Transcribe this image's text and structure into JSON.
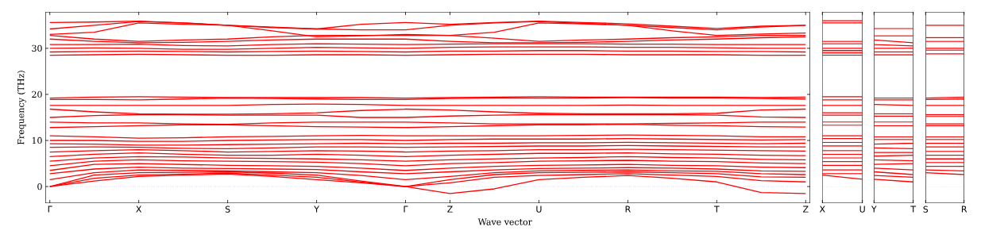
{
  "chart_data": [
    {
      "type": "line",
      "xlabel": "Wave vector",
      "ylabel": "Frequency (THz)",
      "line_style": "solid",
      "ylim": [
        -3.6,
        37.9
      ],
      "yticks": [
        0,
        10,
        20,
        30
      ],
      "categories": [
        "Γ",
        null,
        "X",
        null,
        "S",
        null,
        "Y",
        null,
        "Γ",
        "Z",
        null,
        "U",
        null,
        "R",
        null,
        "T",
        null,
        "Z"
      ],
      "ref_lines": [
        {
          "axis": "y",
          "value": 0,
          "color": "#0000ff",
          "line_style": "dotted"
        }
      ],
      "series": [
        {
          "color": "#ff0000",
          "values": [
            0,
            1.2,
            2.2,
            2.5,
            2.7,
            2.2,
            1.5,
            0.8,
            0,
            -1.5,
            -0.5,
            1.5,
            2.0,
            2.4,
            1.8,
            1.0,
            -1.3,
            -1.5
          ]
        },
        {
          "color": "#ff0000",
          "values": [
            0,
            1.8,
            2.5,
            2.7,
            2.9,
            2.5,
            2.0,
            1.0,
            0,
            0.8,
            2.0,
            2.4,
            2.6,
            2.8,
            2.5,
            2.2,
            1.3,
            1.0
          ]
        },
        {
          "color": "#ff0000",
          "values": [
            0,
            2.5,
            3.0,
            3.1,
            3.2,
            2.9,
            2.5,
            1.2,
            0,
            1.5,
            2.6,
            3.0,
            3.1,
            3.2,
            3.0,
            2.8,
            2.1,
            2.0
          ]
        },
        {
          "color": "#ff0000",
          "values": [
            1.5,
            3.0,
            3.6,
            3.5,
            3.4,
            3.2,
            3.0,
            2.4,
            1.5,
            2.2,
            3.0,
            3.4,
            3.5,
            3.6,
            3.4,
            3.3,
            2.8,
            2.6
          ]
        },
        {
          "color": "#ff0000",
          "values": [
            2.8,
            3.8,
            4.2,
            4.0,
            3.9,
            3.8,
            3.7,
            3.2,
            2.8,
            3.2,
            3.6,
            3.9,
            4.0,
            4.1,
            4.0,
            3.8,
            3.4,
            3.3
          ]
        },
        {
          "color": "#ff0000",
          "values": [
            3.5,
            4.8,
            5.0,
            4.8,
            4.6,
            4.5,
            4.4,
            4.0,
            3.5,
            4.0,
            4.4,
            4.6,
            4.7,
            4.8,
            4.6,
            4.5,
            4.2,
            4.1
          ]
        },
        {
          "color": "#ff0000",
          "values": [
            4.5,
            5.5,
            5.8,
            5.6,
            5.5,
            5.4,
            5.3,
            5.0,
            4.5,
            5.0,
            5.2,
            5.5,
            5.6,
            5.7,
            5.5,
            5.4,
            5.1,
            5.0
          ]
        },
        {
          "color": "#ff0000",
          "values": [
            5.5,
            6.2,
            6.5,
            6.4,
            6.2,
            6.1,
            6.0,
            5.8,
            5.5,
            5.8,
            6.0,
            6.2,
            6.3,
            6.5,
            6.3,
            6.2,
            5.9,
            5.8
          ]
        },
        {
          "color": "#ff0000",
          "values": [
            6.5,
            7.0,
            7.3,
            7.0,
            6.8,
            6.8,
            7.0,
            6.8,
            6.5,
            6.8,
            7.0,
            7.2,
            7.2,
            7.3,
            7.1,
            7.0,
            6.8,
            6.7
          ]
        },
        {
          "color": "#ff0000",
          "values": [
            7.5,
            7.8,
            8.0,
            7.8,
            7.5,
            7.6,
            7.8,
            7.7,
            7.5,
            7.7,
            7.8,
            8.0,
            8.0,
            8.1,
            8.0,
            7.9,
            7.8,
            7.7
          ]
        },
        {
          "color": "#ff0000",
          "values": [
            8.5,
            8.6,
            8.5,
            8.3,
            8.2,
            8.4,
            8.6,
            8.6,
            8.5,
            8.6,
            8.7,
            8.8,
            8.8,
            8.9,
            8.8,
            8.7,
            8.6,
            8.6
          ]
        },
        {
          "color": "#ff0000",
          "values": [
            9.3,
            9.2,
            9.0,
            9.0,
            9.1,
            9.2,
            9.3,
            9.4,
            9.3,
            9.4,
            9.4,
            9.5,
            9.5,
            9.6,
            9.5,
            9.4,
            9.3,
            9.4
          ]
        },
        {
          "color": "#ff0000",
          "values": [
            10.0,
            10.0,
            9.8,
            9.8,
            10.0,
            10.1,
            10.2,
            10.2,
            10.0,
            10.2,
            10.3,
            10.3,
            10.3,
            10.4,
            10.3,
            10.2,
            10.1,
            10.2
          ]
        },
        {
          "color": "#ff0000",
          "values": [
            11.0,
            10.8,
            10.5,
            10.6,
            10.8,
            10.9,
            11.0,
            11.1,
            11.0,
            11.0,
            11.0,
            11.0,
            11.1,
            11.2,
            11.1,
            11.0,
            10.8,
            10.8
          ]
        },
        {
          "color": "#ff0000",
          "values": [
            12.8,
            13.0,
            13.2,
            13.4,
            13.4,
            13.2,
            13.0,
            12.9,
            12.8,
            13.0,
            13.2,
            13.4,
            13.4,
            13.5,
            13.3,
            13.2,
            13.0,
            12.9
          ]
        },
        {
          "color": "#ff0000",
          "values": [
            14.0,
            13.8,
            13.8,
            13.6,
            13.5,
            13.8,
            14.0,
            14.0,
            14.0,
            13.8,
            13.6,
            13.6,
            13.6,
            13.6,
            13.7,
            13.8,
            14.0,
            14.0
          ]
        },
        {
          "color": "#ff0000",
          "values": [
            15.0,
            15.4,
            15.6,
            15.6,
            15.5,
            15.5,
            15.5,
            15.0,
            15.0,
            15.3,
            15.5,
            15.6,
            15.6,
            15.6,
            15.6,
            15.5,
            15.1,
            15.0
          ]
        },
        {
          "color": "#ff0000",
          "values": [
            16.8,
            16.2,
            15.8,
            15.7,
            15.7,
            15.8,
            16.0,
            16.5,
            16.8,
            16.6,
            16.2,
            15.9,
            15.8,
            15.8,
            15.8,
            15.9,
            16.6,
            16.8
          ]
        },
        {
          "color": "#ff0000",
          "values": [
            17.6,
            17.6,
            17.6,
            17.6,
            17.6,
            17.8,
            17.9,
            17.8,
            17.6,
            17.6,
            17.6,
            17.6,
            17.6,
            17.7,
            17.6,
            17.6,
            17.6,
            17.6
          ]
        },
        {
          "color": "#ff0000",
          "values": [
            18.9,
            18.9,
            18.8,
            19.0,
            19.2,
            19.1,
            19.0,
            18.9,
            18.9,
            19.1,
            19.2,
            19.2,
            19.2,
            19.3,
            19.2,
            19.2,
            19.1,
            19.0
          ]
        },
        {
          "color": "#ff0000",
          "values": [
            19.2,
            19.4,
            19.5,
            19.4,
            19.3,
            19.3,
            19.3,
            19.3,
            19.2,
            19.3,
            19.4,
            19.5,
            19.4,
            19.4,
            19.4,
            19.4,
            19.3,
            19.4
          ]
        },
        {
          "color": "#ff0000",
          "values": [
            28.5,
            28.6,
            28.7,
            28.6,
            28.5,
            28.5,
            28.6,
            28.6,
            28.5,
            28.6,
            28.7,
            28.7,
            28.7,
            28.6,
            28.6,
            28.6,
            28.5,
            28.5
          ]
        },
        {
          "color": "#ff0000",
          "values": [
            29.2,
            29.3,
            29.4,
            29.3,
            29.2,
            29.3,
            29.4,
            29.3,
            29.2,
            29.4,
            29.4,
            29.5,
            29.5,
            29.4,
            29.4,
            29.3,
            29.3,
            29.2
          ]
        },
        {
          "color": "#ff0000",
          "values": [
            30.0,
            30.1,
            30.0,
            29.8,
            29.8,
            30.0,
            30.2,
            30.1,
            30.0,
            30.2,
            30.3,
            30.3,
            30.3,
            30.2,
            30.2,
            30.1,
            30.0,
            30.0
          ]
        },
        {
          "color": "#ff0000",
          "values": [
            30.8,
            30.8,
            30.9,
            30.6,
            30.5,
            30.8,
            31.0,
            30.9,
            30.8,
            30.9,
            31.0,
            31.0,
            31.0,
            30.9,
            30.9,
            30.8,
            30.8,
            30.8
          ]
        },
        {
          "color": "#ff0000",
          "values": [
            32.0,
            31.5,
            31.2,
            31.3,
            31.5,
            31.8,
            32.0,
            32.0,
            32.0,
            31.5,
            31.2,
            31.2,
            31.3,
            31.5,
            31.8,
            32.0,
            32.3,
            32.5
          ]
        },
        {
          "color": "#ff0000",
          "values": [
            32.8,
            32.0,
            31.5,
            31.8,
            32.0,
            32.5,
            32.8,
            32.8,
            32.8,
            32.8,
            32.2,
            31.5,
            31.8,
            32.0,
            32.3,
            32.5,
            32.8,
            32.8
          ]
        },
        {
          "color": "#ff0000",
          "values": [
            33.0,
            33.5,
            35.5,
            35.2,
            35.0,
            33.8,
            32.5,
            32.7,
            33.0,
            32.8,
            33.5,
            35.5,
            35.3,
            35.0,
            33.8,
            32.8,
            33.1,
            33.3
          ]
        },
        {
          "color": "#ff0000",
          "values": [
            34.2,
            35.0,
            35.8,
            35.5,
            35.0,
            34.5,
            34.2,
            34.0,
            34.0,
            35.0,
            35.5,
            35.8,
            35.4,
            35.0,
            34.5,
            34.0,
            34.6,
            35.0
          ]
        },
        {
          "color": "#ff0000",
          "values": [
            35.6,
            35.7,
            35.9,
            35.5,
            35.0,
            34.6,
            34.2,
            35.2,
            35.6,
            35.2,
            35.6,
            35.9,
            35.6,
            35.3,
            34.8,
            34.3,
            34.8,
            35.0
          ]
        }
      ]
    },
    {
      "type": "line",
      "line_style": "solid",
      "tick_labels": "x",
      "ylim": [
        -3.6,
        37.9
      ],
      "yticks": [
        0,
        10,
        20,
        30
      ],
      "categories": [
        "X",
        "U"
      ],
      "ref_lines": [
        {
          "axis": "y",
          "value": 0,
          "color": "#0000ff",
          "line_style": "dotted"
        }
      ],
      "series": [
        {
          "color": "#ff0000",
          "values": [
            36.0,
            36.0
          ]
        },
        {
          "color": "#ff0000",
          "values": [
            35.5,
            35.5
          ]
        },
        {
          "color": "#ff0000",
          "values": [
            31.5,
            31.5
          ]
        },
        {
          "color": "#ff0000",
          "values": [
            31.0,
            31.0
          ]
        },
        {
          "color": "#ff0000",
          "values": [
            30.0,
            30.0
          ]
        },
        {
          "color": "#ff0000",
          "values": [
            29.5,
            29.5
          ]
        },
        {
          "color": "#ff0000",
          "values": [
            29.0,
            29.0
          ]
        },
        {
          "color": "#ff0000",
          "values": [
            28.5,
            28.5
          ]
        },
        {
          "color": "#ff0000",
          "values": [
            19.5,
            19.5
          ]
        },
        {
          "color": "#ff0000",
          "values": [
            18.8,
            18.8
          ]
        },
        {
          "color": "#ff0000",
          "values": [
            17.6,
            17.6
          ]
        },
        {
          "color": "#ff0000",
          "values": [
            16.0,
            16.0
          ]
        },
        {
          "color": "#ff0000",
          "values": [
            15.5,
            15.5
          ]
        },
        {
          "color": "#ff0000",
          "values": [
            14.0,
            14.0
          ]
        },
        {
          "color": "#ff0000",
          "values": [
            13.3,
            13.3
          ]
        },
        {
          "color": "#ff0000",
          "values": [
            11.0,
            11.0
          ]
        },
        {
          "color": "#ff0000",
          "values": [
            10.4,
            10.4
          ]
        },
        {
          "color": "#ff0000",
          "values": [
            9.6,
            9.6
          ]
        },
        {
          "color": "#ff0000",
          "values": [
            8.8,
            8.8
          ]
        },
        {
          "color": "#ff0000",
          "values": [
            7.8,
            7.8
          ]
        },
        {
          "color": "#ff0000",
          "values": [
            7.0,
            7.0
          ]
        },
        {
          "color": "#ff0000",
          "values": [
            6.2,
            6.2
          ]
        },
        {
          "color": "#ff0000",
          "values": [
            5.4,
            5.4
          ]
        },
        {
          "color": "#ff0000",
          "values": [
            4.6,
            4.6
          ]
        },
        {
          "color": "#ff0000",
          "values": [
            3.6,
            3.6
          ]
        },
        {
          "color": "#ff0000",
          "values": [
            2.8,
            2.8
          ]
        },
        {
          "color": "#ff0000",
          "values": [
            2.5,
            1.6
          ]
        }
      ]
    },
    {
      "type": "line",
      "line_style": "solid",
      "tick_labels": "x",
      "ylim": [
        -3.6,
        37.9
      ],
      "yticks": [
        0,
        10,
        20,
        30
      ],
      "categories": [
        "Y",
        "T"
      ],
      "ref_lines": [
        {
          "axis": "y",
          "value": 0,
          "color": "#0000ff",
          "line_style": "dotted"
        }
      ],
      "series": [
        {
          "color": "#ff0000",
          "values": [
            34.3,
            34.3
          ]
        },
        {
          "color": "#ff0000",
          "values": [
            32.7,
            32.7
          ]
        },
        {
          "color": "#ff0000",
          "values": [
            31.8,
            31.2
          ]
        },
        {
          "color": "#ff0000",
          "values": [
            30.8,
            30.5
          ]
        },
        {
          "color": "#ff0000",
          "values": [
            30.0,
            30.0
          ]
        },
        {
          "color": "#ff0000",
          "values": [
            29.2,
            29.2
          ]
        },
        {
          "color": "#ff0000",
          "values": [
            28.6,
            28.6
          ]
        },
        {
          "color": "#ff0000",
          "values": [
            19.2,
            19.2
          ]
        },
        {
          "color": "#ff0000",
          "values": [
            18.8,
            18.8
          ]
        },
        {
          "color": "#ff0000",
          "values": [
            17.8,
            17.6
          ]
        },
        {
          "color": "#ff0000",
          "values": [
            15.8,
            15.8
          ]
        },
        {
          "color": "#ff0000",
          "values": [
            15.3,
            15.3
          ]
        },
        {
          "color": "#ff0000",
          "values": [
            14.0,
            14.0
          ]
        },
        {
          "color": "#ff0000",
          "values": [
            13.2,
            13.2
          ]
        },
        {
          "color": "#ff0000",
          "values": [
            10.8,
            10.8
          ]
        },
        {
          "color": "#ff0000",
          "values": [
            10.2,
            10.2
          ]
        },
        {
          "color": "#ff0000",
          "values": [
            9.2,
            9.4
          ]
        },
        {
          "color": "#ff0000",
          "values": [
            8.4,
            8.2
          ]
        },
        {
          "color": "#ff0000",
          "values": [
            7.4,
            7.4
          ]
        },
        {
          "color": "#ff0000",
          "values": [
            6.6,
            6.8
          ]
        },
        {
          "color": "#ff0000",
          "values": [
            5.8,
            5.6
          ]
        },
        {
          "color": "#ff0000",
          "values": [
            4.8,
            5.0
          ]
        },
        {
          "color": "#ff0000",
          "values": [
            4.0,
            3.6
          ]
        },
        {
          "color": "#ff0000",
          "values": [
            3.2,
            2.6
          ]
        },
        {
          "color": "#ff0000",
          "values": [
            2.4,
            2.0
          ]
        },
        {
          "color": "#ff0000",
          "values": [
            1.6,
            1.0
          ]
        }
      ]
    },
    {
      "type": "line",
      "line_style": "solid",
      "tick_labels": "x",
      "ylim": [
        -3.6,
        37.9
      ],
      "yticks": [
        0,
        10,
        20,
        30
      ],
      "categories": [
        "S",
        "R"
      ],
      "ref_lines": [
        {
          "axis": "y",
          "value": 0,
          "color": "#0000ff",
          "line_style": "dotted"
        }
      ],
      "series": [
        {
          "color": "#ff0000",
          "values": [
            35.0,
            35.0
          ]
        },
        {
          "color": "#ff0000",
          "values": [
            32.3,
            32.3
          ]
        },
        {
          "color": "#ff0000",
          "values": [
            31.5,
            31.5
          ]
        },
        {
          "color": "#ff0000",
          "values": [
            30.0,
            30.0
          ]
        },
        {
          "color": "#ff0000",
          "values": [
            29.6,
            29.6
          ]
        },
        {
          "color": "#ff0000",
          "values": [
            28.8,
            28.8
          ]
        },
        {
          "color": "#ff0000",
          "values": [
            19.2,
            19.4
          ]
        },
        {
          "color": "#ff0000",
          "values": [
            18.9,
            19.0
          ]
        },
        {
          "color": "#ff0000",
          "values": [
            17.6,
            17.6
          ]
        },
        {
          "color": "#ff0000",
          "values": [
            15.6,
            15.6
          ]
        },
        {
          "color": "#ff0000",
          "values": [
            15.2,
            15.2
          ]
        },
        {
          "color": "#ff0000",
          "values": [
            13.6,
            13.6
          ]
        },
        {
          "color": "#ff0000",
          "values": [
            13.2,
            13.2
          ]
        },
        {
          "color": "#ff0000",
          "values": [
            10.8,
            10.8
          ]
        },
        {
          "color": "#ff0000",
          "values": [
            10.2,
            10.2
          ]
        },
        {
          "color": "#ff0000",
          "values": [
            9.4,
            9.4
          ]
        },
        {
          "color": "#ff0000",
          "values": [
            8.6,
            8.6
          ]
        },
        {
          "color": "#ff0000",
          "values": [
            7.6,
            7.6
          ]
        },
        {
          "color": "#ff0000",
          "values": [
            6.8,
            6.8
          ]
        },
        {
          "color": "#ff0000",
          "values": [
            6.0,
            6.0
          ]
        },
        {
          "color": "#ff0000",
          "values": [
            5.2,
            5.2
          ]
        },
        {
          "color": "#ff0000",
          "values": [
            4.4,
            4.4
          ]
        },
        {
          "color": "#ff0000",
          "values": [
            3.6,
            3.4
          ]
        },
        {
          "color": "#ff0000",
          "values": [
            3.0,
            2.6
          ]
        }
      ]
    }
  ]
}
